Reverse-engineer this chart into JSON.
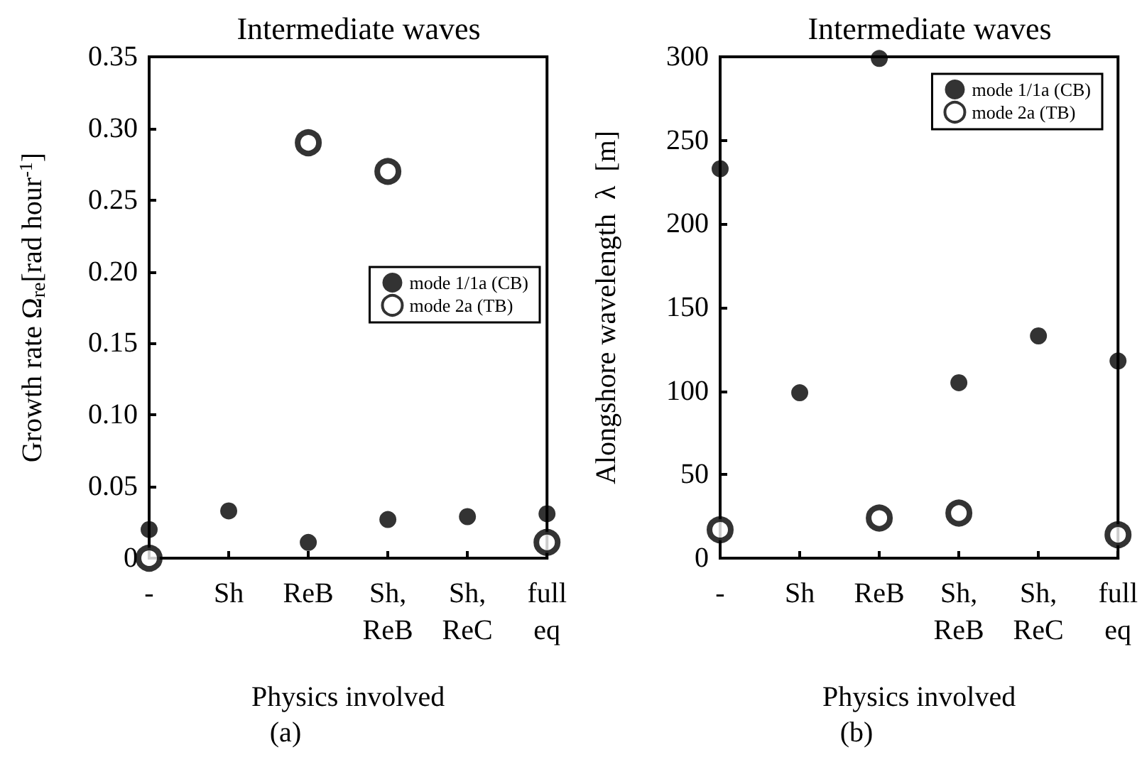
{
  "chart_data": [
    {
      "type": "scatter",
      "title": "Intermediate waves",
      "xlabel": "Physics involved",
      "ylabel": "Growth rate Ω$_{re}$[rad hour$^{-1}$]",
      "annotations": [
        "(a)"
      ],
      "categories": [
        "-",
        "Sh",
        "ReB",
        "Sh,\nReB",
        "Sh,\nReC",
        "full\neq"
      ],
      "series": [
        {
          "name": "mode 1/1a (CB)",
          "color": "#000000",
          "values": [
            0.02,
            0.033,
            0.011,
            0.027,
            0.029,
            0.031
          ]
        },
        {
          "name": "mode 2a (TB)",
          "color": "#000000",
          "values": [
            0,
            null,
            0.29,
            0.27,
            null,
            0.011
          ]
        }
      ],
      "ylim": [
        0,
        0.35
      ],
      "yticks": [
        0,
        0.05,
        {
          "value": 0.1,
          "label": "0.10"
        },
        0.15,
        {
          "value": 0.2,
          "label": "0.20"
        },
        0.25,
        {
          "value": 0.3,
          "label": "0.30"
        },
        0.35
      ],
      "grid": false,
      "legend": "right",
      "marker": "circle"
    },
    {
      "type": "scatter",
      "title": "Intermediate waves",
      "xlabel": "Physics involved",
      "ylabel": "Alongshore wavelength  λ  [m]",
      "annotations": [
        "(b)"
      ],
      "categories": [
        "-",
        "Sh",
        "ReB",
        "Sh,\nReB",
        "Sh,\nReC",
        "full\neq"
      ],
      "series": [
        {
          "name": "mode 1/1a (CB)",
          "color": "#000000",
          "values": [
            233,
            99,
            299,
            105,
            133,
            118
          ]
        },
        {
          "name": "mode 2a (TB)",
          "color": "#000000",
          "values": [
            17,
            null,
            24,
            27,
            null,
            14
          ]
        }
      ],
      "ylim": [
        0,
        300
      ],
      "yticks": [
        0,
        50,
        100,
        150,
        200,
        250,
        300
      ],
      "grid": false,
      "legend": "top right",
      "marker": "circle"
    }
  ]
}
